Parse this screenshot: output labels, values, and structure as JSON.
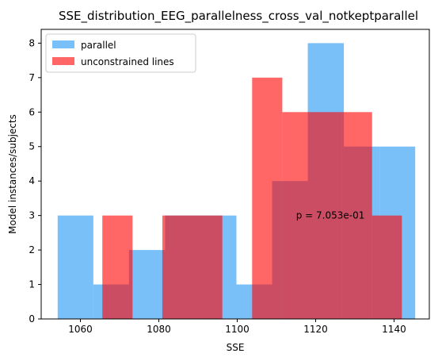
{
  "chart_data": {
    "type": "bar",
    "title": "SSE_distribution_EEG_parallelness_cross_val_notkeptparallel",
    "xlabel": "SSE",
    "ylabel": "Model instances/subjects",
    "xlim": [
      1050,
      1149
    ],
    "ylim": [
      0,
      8.4
    ],
    "xticks": [
      1060,
      1080,
      1100,
      1120,
      1140
    ],
    "yticks": [
      0,
      1,
      2,
      3,
      4,
      5,
      6,
      7,
      8
    ],
    "legend_position": "top-left",
    "annotation": {
      "text": "p = 7.053e-01",
      "x": 1115,
      "y": 3
    },
    "series": [
      {
        "name": "parallel",
        "color": "#2196f3",
        "alpha": 0.6,
        "bin_edges": [
          1054.2,
          1063.3,
          1072.4,
          1081.6,
          1090.7,
          1099.8,
          1108.9,
          1118.0,
          1127.2,
          1136.3,
          1145.4
        ],
        "counts": [
          3,
          1,
          2,
          3,
          3,
          1,
          4,
          8,
          5,
          5
        ]
      },
      {
        "name": "unconstrained lines",
        "color": "#ff0000",
        "alpha": 0.6,
        "bin_edges": [
          1058.0,
          1065.6,
          1073.3,
          1080.9,
          1088.6,
          1096.2,
          1103.8,
          1111.5,
          1119.1,
          1126.7,
          1134.4,
          1142.0
        ],
        "counts": [
          0,
          3,
          0,
          3,
          3,
          0,
          7,
          6,
          6,
          6,
          3
        ]
      }
    ]
  }
}
